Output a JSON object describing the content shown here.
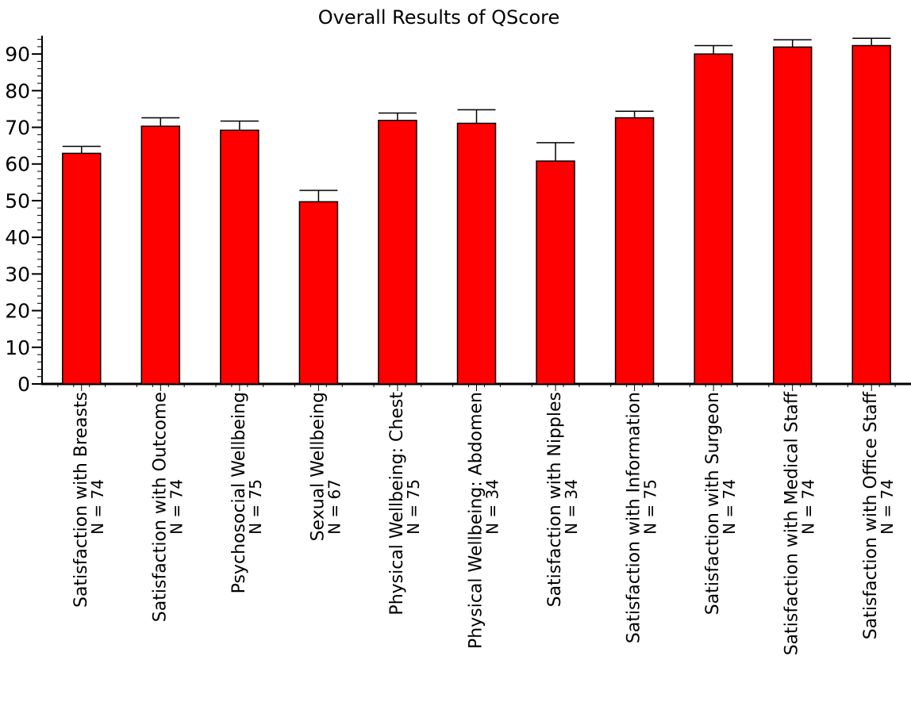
{
  "chart_data": {
    "type": "bar",
    "title": "Overall Results of QScore",
    "xlabel": "",
    "ylabel": "",
    "ylim": [
      0,
      95
    ],
    "yticks": [
      0,
      10,
      20,
      30,
      40,
      50,
      60,
      70,
      80,
      90
    ],
    "grid": false,
    "legend": "none",
    "categories": [
      "Satisfaction with Breasts",
      "Satisfaction with Outcome",
      "Psychosocial Wellbeing",
      "Sexual Wellbeing",
      "Physical Wellbeing: Chest",
      "Physical Wellbeing: Abdomen",
      "Satisfaction with Nipples",
      "Satisfaction with Information",
      "Satisfaction with Surgeon",
      "Satisfaction with Medical Staff",
      "Satisfaction with Office Staff"
    ],
    "n_labels": [
      "N = 74",
      "N = 74",
      "N = 75",
      "N = 67",
      "N = 75",
      "N = 34",
      "N = 34",
      "N = 75",
      "N = 74",
      "N = 74",
      "N = 74"
    ],
    "values": [
      62.9,
      70.3,
      69.2,
      49.7,
      71.9,
      71.1,
      60.8,
      72.6,
      90.0,
      91.9,
      92.3
    ],
    "error_upper": [
      64.8,
      72.6,
      71.7,
      52.8,
      73.9,
      74.8,
      65.8,
      74.4,
      92.3,
      93.9,
      94.3
    ],
    "bar_color": "#ff0000"
  }
}
